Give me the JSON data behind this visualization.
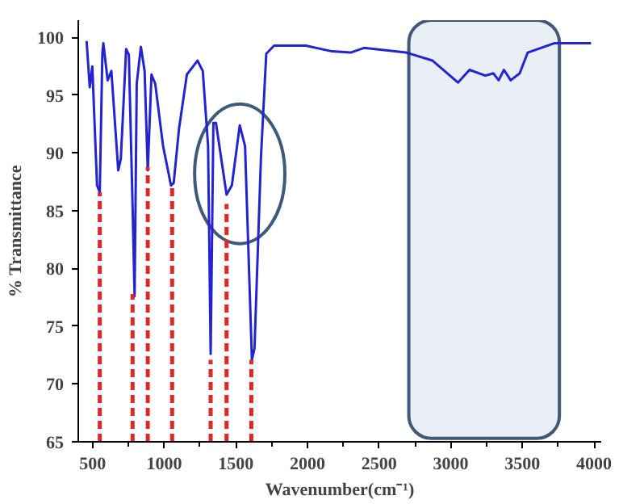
{
  "chart_data": {
    "type": "line",
    "xlabel": "Wavenumber(cm⁻¹)",
    "ylabel": "% Transmittance",
    "xlim": [
      400,
      4050
    ],
    "ylim": [
      65,
      101.5
    ],
    "xticks": [
      500,
      1000,
      1500,
      2000,
      2500,
      3000,
      3500,
      4000
    ],
    "yticks": [
      65,
      70,
      75,
      80,
      85,
      90,
      95,
      100
    ],
    "series": [
      {
        "color": "#2323d2",
        "line_style": "solid",
        "x": [
          458,
          480,
          498,
          531,
          550,
          568,
          575,
          605,
          631,
          679,
          697,
          734,
          753,
          779,
          793,
          808,
          837,
          863,
          885,
          911,
          937,
          992,
          1047,
          1066,
          1103,
          1158,
          1232,
          1269,
          1306,
          1324,
          1343,
          1361,
          1435,
          1472,
          1527,
          1564,
          1612,
          1630,
          1675,
          1712,
          1767,
          1988,
          2172,
          2301,
          2394,
          2688,
          2873,
          3050,
          3131,
          3241,
          3297,
          3334,
          3371,
          3418,
          3481,
          3537,
          3721,
          3979
        ],
        "values": [
          99.7,
          95.7,
          97.5,
          87.2,
          86.6,
          98.6,
          99.5,
          96.3,
          97.1,
          88.5,
          89.5,
          99.0,
          98.5,
          85.4,
          77.6,
          96.0,
          99.2,
          97.1,
          88.5,
          96.8,
          96.0,
          90.6,
          87.2,
          87.4,
          92.1,
          96.8,
          98.0,
          97.1,
          90.6,
          72.6,
          92.6,
          92.6,
          86.4,
          87.2,
          92.4,
          90.6,
          72.1,
          73.1,
          89.6,
          98.6,
          99.3,
          99.3,
          98.8,
          98.7,
          99.1,
          98.7,
          98.0,
          96.1,
          97.2,
          96.7,
          96.9,
          96.3,
          97.2,
          96.3,
          96.9,
          98.7,
          99.5,
          99.5
        ]
      },
      {
        "color": "#e02828",
        "line_style": "dashed",
        "x": [
          550,
          550
        ],
        "values": [
          65,
          86.6
        ]
      },
      {
        "color": "#e02828",
        "line_style": "dashed",
        "x": [
          779,
          779
        ],
        "values": [
          65,
          77.8
        ]
      },
      {
        "color": "#e02828",
        "line_style": "dashed",
        "x": [
          885,
          885
        ],
        "values": [
          65,
          88.8
        ]
      },
      {
        "color": "#e02828",
        "line_style": "dashed",
        "x": [
          1055,
          1055
        ],
        "values": [
          65,
          87.0
        ]
      },
      {
        "color": "#e02828",
        "line_style": "dashed",
        "x": [
          1324,
          1324
        ],
        "values": [
          65,
          72.1
        ]
      },
      {
        "color": "#e02828",
        "line_style": "dashed",
        "x": [
          1435,
          1435
        ],
        "values": [
          65,
          85.6
        ]
      },
      {
        "color": "#e02828",
        "line_style": "dashed",
        "x": [
          1608,
          1608
        ],
        "values": [
          65,
          72.1
        ]
      }
    ],
    "bands": [
      {
        "axis": "x",
        "from": 2707,
        "to": 3758,
        "color": "#e9eef7"
      }
    ]
  }
}
